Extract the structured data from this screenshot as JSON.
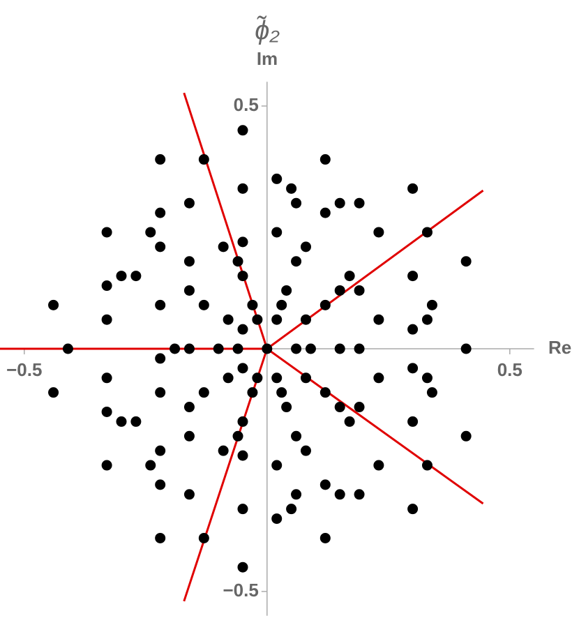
{
  "chart_data": {
    "type": "scatter",
    "title": "ϕ̃₂",
    "xlabel": "Re",
    "ylabel": "Im",
    "xlim": [
      -0.55,
      0.55
    ],
    "ylim": [
      -0.55,
      0.55
    ],
    "xticks": [
      {
        "value": -0.5,
        "label": "−0.5"
      },
      0.5
    ],
    "yticks": [
      {
        "value": -0.5,
        "label": "−0.5"
      },
      0.5
    ],
    "series": [
      {
        "color": "#000000",
        "x": [
          -0.05,
          -0.22,
          -0.13,
          0.12,
          -0.05,
          0.02,
          0.05,
          0.3,
          -0.16,
          0.06,
          0.15,
          0.19,
          -0.22,
          -0.33,
          -0.24,
          0.02,
          0.12,
          0.23,
          0.33,
          -0.05,
          -0.09,
          -0.22,
          0.08,
          -0.16,
          -0.06,
          0.06,
          0.41,
          -0.3,
          -0.27,
          -0.05,
          0.17,
          0.3,
          -0.33,
          -0.16,
          0.04,
          0.15,
          0.19,
          -0.44,
          -0.22,
          -0.13,
          -0.03,
          0.03,
          0.12,
          0.34,
          -0.33,
          -0.08,
          0.23,
          0.33,
          -0.02,
          0.02,
          0.08,
          -0.05,
          0.3,
          -0.05,
          -0.22,
          -0.13,
          0.12,
          -0.05,
          0.02,
          0.05,
          0.3,
          -0.16,
          0.06,
          0.15,
          0.19,
          -0.22,
          -0.33,
          -0.24,
          0.02,
          0.12,
          0.23,
          0.33,
          -0.05,
          -0.09,
          -0.22,
          0.08,
          -0.16,
          -0.06,
          0.06,
          0.41,
          -0.3,
          -0.27,
          -0.05,
          0.17,
          0.3,
          -0.33,
          -0.16,
          0.04,
          0.15,
          0.19,
          -0.44,
          -0.22,
          -0.13,
          -0.03,
          0.03,
          0.12,
          0.34,
          -0.33,
          -0.08,
          0.23,
          0.33,
          -0.02,
          0.02,
          0.08,
          -0.05,
          0.3,
          -0.41,
          -0.19,
          -0.16,
          -0.1,
          -0.06,
          0,
          0.06,
          0.09,
          0.15,
          0.19,
          0.41,
          -0.22
        ],
        "y": [
          0.45,
          0.39,
          0.39,
          0.39,
          0.33,
          0.35,
          0.33,
          0.33,
          0.3,
          0.3,
          0.3,
          0.3,
          0.28,
          0.24,
          0.24,
          0.24,
          0.28,
          0.24,
          0.24,
          0.22,
          0.21,
          0.21,
          0.21,
          0.18,
          0.18,
          0.18,
          0.18,
          0.15,
          0.15,
          0.15,
          0.15,
          0.15,
          0.13,
          0.12,
          0.12,
          0.12,
          0.12,
          0.09,
          0.09,
          0.09,
          0.09,
          0.09,
          0.09,
          0.09,
          0.06,
          0.06,
          0.06,
          0.06,
          0.06,
          0.06,
          0.06,
          0.04,
          0.04,
          -0.45,
          -0.39,
          -0.39,
          -0.39,
          -0.33,
          -0.35,
          -0.33,
          -0.33,
          -0.3,
          -0.3,
          -0.3,
          -0.3,
          -0.28,
          -0.24,
          -0.24,
          -0.24,
          -0.28,
          -0.24,
          -0.24,
          -0.22,
          -0.21,
          -0.21,
          -0.21,
          -0.18,
          -0.18,
          -0.18,
          -0.18,
          -0.15,
          -0.15,
          -0.15,
          -0.15,
          -0.15,
          -0.13,
          -0.12,
          -0.12,
          -0.12,
          -0.12,
          -0.09,
          -0.09,
          -0.09,
          -0.09,
          -0.09,
          -0.09,
          -0.09,
          -0.06,
          -0.06,
          -0.06,
          -0.06,
          -0.06,
          -0.06,
          -0.06,
          -0.04,
          -0.04,
          0,
          0,
          0,
          0,
          0,
          0,
          0,
          0,
          0,
          0,
          0,
          -0.02
        ]
      }
    ],
    "lines": [
      {
        "color": "#e00000",
        "x": [
          0,
          -0.55
        ],
        "y": [
          0,
          0
        ]
      },
      {
        "color": "#e00000",
        "x": [
          0,
          -0.171
        ],
        "y": [
          0,
          0.527
        ]
      },
      {
        "color": "#e00000",
        "x": [
          0,
          0.445
        ],
        "y": [
          0,
          0.326
        ]
      },
      {
        "color": "#e00000",
        "x": [
          0,
          0.445
        ],
        "y": [
          0,
          -0.319
        ]
      },
      {
        "color": "#e00000",
        "x": [
          0,
          -0.171
        ],
        "y": [
          0,
          -0.52
        ]
      }
    ]
  }
}
